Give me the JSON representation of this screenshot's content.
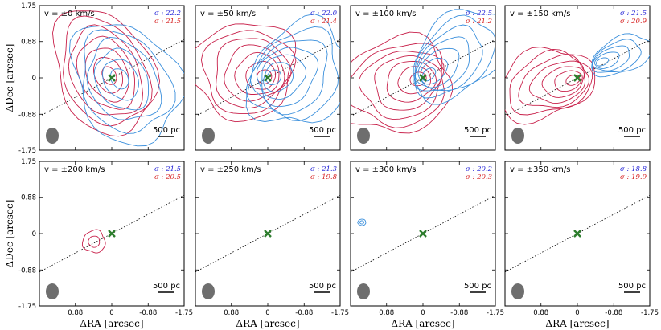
{
  "chart_data": {
    "type": "contour-grid",
    "xlabel": "ΔRA [arcsec]",
    "ylabel": "ΔDec [arcsec]",
    "xlim": [
      1.75,
      -1.75
    ],
    "ylim": [
      -1.75,
      1.75
    ],
    "xticks": [
      {
        "value": 0.88,
        "label": "0.88"
      },
      {
        "value": 0,
        "label": "0"
      },
      {
        "value": -0.88,
        "label": "-0.88"
      },
      {
        "value": -1.75,
        "label": "-1.75"
      }
    ],
    "yticks": [
      {
        "value": 1.75,
        "label": "1.75"
      },
      {
        "value": 0.88,
        "label": "0.88"
      },
      {
        "value": 0,
        "label": "0"
      },
      {
        "value": -0.88,
        "label": "-0.88"
      },
      {
        "value": -1.75,
        "label": "-1.75"
      }
    ],
    "scalebar_label": "500 pc",
    "sigma_prefix": "σ : ",
    "colors": {
      "blue": "#3a8fdc",
      "red": "#c8204a",
      "marker": "#2d7d2d",
      "beam": "#6e6e6e",
      "sigma_blue": "#1f1fd6",
      "sigma_red": "#d61f1f"
    },
    "panels": [
      {
        "velocity": "v = ±0 km/s",
        "sigma_blue": "22.2",
        "sigma_red": "21.5",
        "has_red": true,
        "has_blue": true
      },
      {
        "velocity": "v = ±50 km/s",
        "sigma_blue": "22.0",
        "sigma_red": "21.4",
        "has_red": true,
        "has_blue": true
      },
      {
        "velocity": "v = ±100 km/s",
        "sigma_blue": "22.5",
        "sigma_red": "21.2",
        "has_red": true,
        "has_blue": true
      },
      {
        "velocity": "v = ±150 km/s",
        "sigma_blue": "21.5",
        "sigma_red": "20.9",
        "has_red": true,
        "has_blue": true
      },
      {
        "velocity": "v = ±200 km/s",
        "sigma_blue": "21.5",
        "sigma_red": "20.5",
        "has_red": true,
        "has_blue": false
      },
      {
        "velocity": "v = ±250 km/s",
        "sigma_blue": "21.3",
        "sigma_red": "19.8",
        "has_red": false,
        "has_blue": false
      },
      {
        "velocity": "v = ±300 km/s",
        "sigma_blue": "20.2",
        "sigma_red": "20.3",
        "has_red": false,
        "has_blue": true
      },
      {
        "velocity": "v = ±350 km/s",
        "sigma_blue": "18.8",
        "sigma_red": "19.9",
        "has_red": false,
        "has_blue": false
      }
    ],
    "center_marker": {
      "x": 0,
      "y": 0
    },
    "axis_line_angle_deg": 28
  }
}
